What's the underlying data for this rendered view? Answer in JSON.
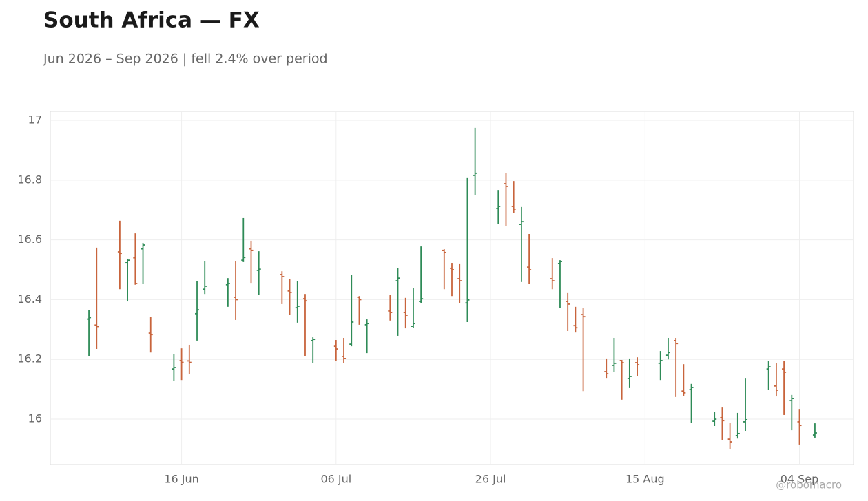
{
  "chart_data": {
    "type": "ohlc",
    "title": "South Africa — FX",
    "subtitle": "Jun 2026 – Sep 2026 | fell 2.4% over period",
    "watermark": "@robomacro",
    "up_color": "#2e8b57",
    "down_color": "#c8643c",
    "grid": true,
    "x": [
      "04 Jun",
      "05 Jun",
      "08 Jun",
      "09 Jun",
      "10 Jun",
      "11 Jun",
      "12 Jun",
      "15 Jun",
      "16 Jun",
      "17 Jun",
      "18 Jun",
      "19 Jun",
      "22 Jun",
      "23 Jun",
      "24 Jun",
      "25 Jun",
      "26 Jun",
      "29 Jun",
      "30 Jun",
      "01 Jul",
      "02 Jul",
      "03 Jul",
      "06 Jul",
      "07 Jul",
      "08 Jul",
      "09 Jul",
      "10 Jul",
      "13 Jul",
      "14 Jul",
      "15 Jul",
      "16 Jul",
      "17 Jul",
      "20 Jul",
      "21 Jul",
      "22 Jul",
      "23 Jul",
      "24 Jul",
      "27 Jul",
      "28 Jul",
      "29 Jul",
      "30 Jul",
      "31 Jul",
      "03 Aug",
      "04 Aug",
      "05 Aug",
      "06 Aug",
      "07 Aug",
      "10 Aug",
      "11 Aug",
      "12 Aug",
      "13 Aug",
      "14 Aug",
      "17 Aug",
      "18 Aug",
      "19 Aug",
      "20 Aug",
      "21 Aug",
      "24 Aug",
      "25 Aug",
      "26 Aug",
      "27 Aug",
      "28 Aug",
      "31 Aug",
      "01 Sep",
      "02 Sep",
      "03 Sep",
      "04 Sep",
      "06 Sep"
    ],
    "open": [
      16.335,
      16.315,
      16.56,
      16.525,
      16.54,
      16.57,
      16.288,
      16.168,
      16.196,
      16.195,
      16.353,
      16.435,
      16.45,
      16.408,
      16.532,
      16.57,
      16.498,
      16.484,
      16.429,
      16.373,
      16.403,
      16.263,
      16.244,
      16.21,
      16.251,
      16.408,
      16.316,
      16.362,
      16.463,
      16.357,
      16.311,
      16.394,
      16.565,
      16.505,
      16.47,
      16.389,
      16.816,
      16.705,
      16.788,
      16.712,
      16.652,
      16.509,
      16.47,
      16.521,
      16.394,
      16.313,
      16.35,
      16.159,
      16.18,
      16.196,
      16.136,
      16.189,
      16.187,
      16.214,
      16.263,
      16.094,
      16.099,
      15.993,
      16.005,
      15.933,
      15.945,
      15.991,
      16.168,
      16.111,
      16.168,
      16.062,
      15.991,
      15.947
    ],
    "high": [
      16.366,
      16.574,
      16.664,
      16.537,
      16.622,
      16.59,
      16.343,
      16.217,
      16.237,
      16.249,
      16.461,
      16.53,
      16.472,
      16.53,
      16.673,
      16.597,
      16.562,
      16.495,
      16.47,
      16.461,
      16.419,
      16.274,
      16.265,
      16.272,
      16.484,
      16.412,
      16.334,
      16.417,
      16.505,
      16.406,
      16.44,
      16.578,
      16.569,
      16.523,
      16.521,
      16.809,
      16.975,
      16.767,
      16.823,
      16.797,
      16.71,
      16.62,
      16.539,
      16.532,
      16.422,
      16.376,
      16.371,
      16.203,
      16.272,
      16.198,
      16.203,
      16.207,
      16.228,
      16.272,
      16.272,
      16.184,
      16.118,
      16.025,
      16.039,
      15.988,
      16.021,
      16.138,
      16.194,
      16.189,
      16.194,
      16.081,
      16.032,
      15.986
    ],
    "low": [
      16.21,
      16.235,
      16.435,
      16.394,
      16.45,
      16.452,
      16.223,
      16.129,
      16.131,
      16.152,
      16.263,
      16.419,
      16.376,
      16.332,
      16.528,
      16.456,
      16.417,
      16.385,
      16.348,
      16.323,
      16.21,
      16.187,
      16.196,
      16.189,
      16.244,
      16.316,
      16.221,
      16.33,
      16.279,
      16.304,
      16.306,
      16.389,
      16.435,
      16.412,
      16.389,
      16.325,
      16.749,
      16.654,
      16.647,
      16.689,
      16.459,
      16.454,
      16.435,
      16.371,
      16.295,
      16.29,
      16.094,
      16.138,
      16.157,
      16.065,
      16.104,
      16.143,
      16.131,
      16.2,
      16.074,
      16.078,
      15.988,
      15.977,
      15.931,
      15.901,
      15.935,
      15.959,
      16.097,
      16.076,
      16.014,
      15.963,
      15.915,
      15.938
    ],
    "close": [
      16.34,
      16.31,
      16.555,
      16.532,
      16.454,
      16.583,
      16.283,
      16.173,
      16.19,
      16.19,
      16.366,
      16.445,
      16.454,
      16.4,
      16.541,
      16.565,
      16.502,
      16.477,
      16.424,
      16.378,
      16.396,
      16.267,
      16.235,
      16.203,
      16.325,
      16.4,
      16.32,
      16.357,
      16.472,
      16.348,
      16.32,
      16.403,
      16.558,
      16.5,
      16.463,
      16.399,
      16.823,
      16.712,
      16.779,
      16.703,
      16.661,
      16.5,
      16.463,
      16.528,
      16.385,
      16.306,
      16.343,
      16.152,
      16.187,
      16.189,
      16.143,
      16.182,
      16.196,
      16.223,
      16.253,
      16.088,
      16.106,
      16.0,
      15.995,
      15.924,
      15.952,
      15.998,
      16.175,
      16.097,
      16.157,
      16.069,
      15.979,
      15.954
    ],
    "xlim": [
      "30 May",
      "11 Sep"
    ],
    "xticks": [
      "16 Jun",
      "06 Jul",
      "26 Jul",
      "15 Aug",
      "04 Sep"
    ],
    "ylim": [
      15.848,
      17.03
    ],
    "yticks": [
      16,
      16.2,
      16.4,
      16.6,
      16.8,
      17
    ]
  }
}
